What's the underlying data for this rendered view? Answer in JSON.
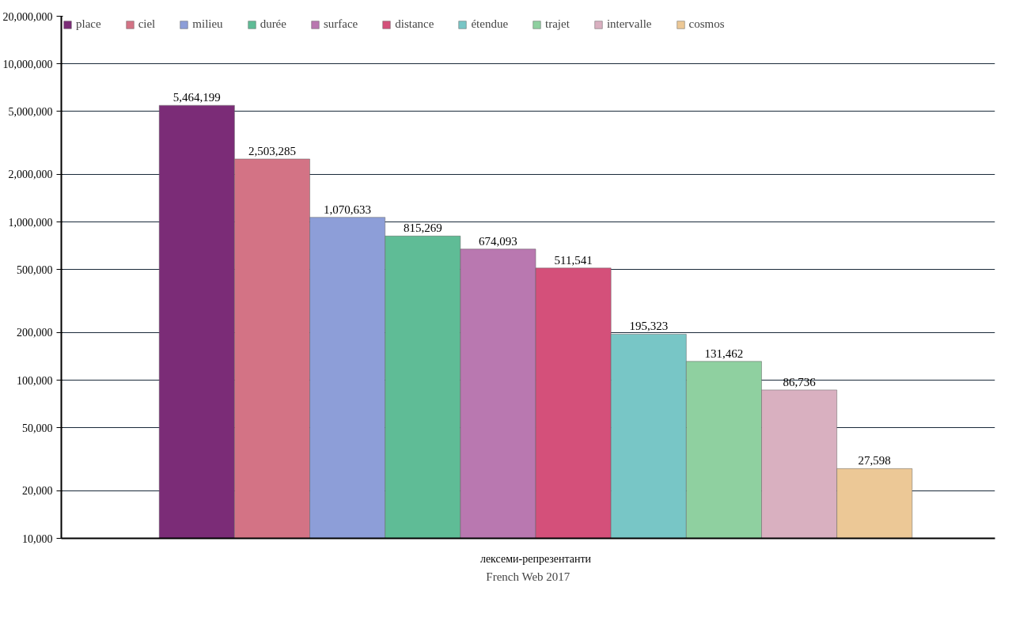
{
  "chart_data": {
    "type": "bar",
    "log": "y",
    "grid": "y",
    "legend": "top",
    "categories": [
      "лексеми-репрезентанти"
    ],
    "series": [
      {
        "name": "place",
        "color": "#7b2c77",
        "values": [
          5464199
        ],
        "value_labels": [
          "5,464,199"
        ]
      },
      {
        "name": "ciel",
        "color": "#d37385",
        "values": [
          2503285
        ],
        "value_labels": [
          "2,503,285"
        ]
      },
      {
        "name": "milieu",
        "color": "#8d9ed8",
        "values": [
          1070633
        ],
        "value_labels": [
          "1,070,633"
        ]
      },
      {
        "name": "durée",
        "color": "#5fbc96",
        "values": [
          815269
        ],
        "value_labels": [
          "815,269"
        ]
      },
      {
        "name": "surface",
        "color": "#b978b0",
        "values": [
          674093
        ],
        "value_labels": [
          "674,093"
        ]
      },
      {
        "name": "distance",
        "color": "#d4507a",
        "values": [
          511541
        ],
        "value_labels": [
          "511,541"
        ]
      },
      {
        "name": "étendue",
        "color": "#78c6c6",
        "values": [
          195323
        ],
        "value_labels": [
          "195,323"
        ]
      },
      {
        "name": "trajet",
        "color": "#8fd0a0",
        "values": [
          131462
        ],
        "value_labels": [
          "131,462"
        ]
      },
      {
        "name": "intervalle",
        "color": "#d9b0c0",
        "values": [
          86736
        ],
        "value_labels": [
          "86,736"
        ]
      },
      {
        "name": "cosmos",
        "color": "#ecc896",
        "values": [
          27598
        ],
        "value_labels": [
          "27,598"
        ]
      }
    ],
    "ylim": [
      10000,
      20000000
    ],
    "yticks": [
      {
        "value": 10000,
        "label": "10,000"
      },
      {
        "value": 20000,
        "label": "20,000"
      },
      {
        "value": 50000,
        "label": "50,000"
      },
      {
        "value": 100000,
        "label": "100,000"
      },
      {
        "value": 200000,
        "label": "200,000"
      },
      {
        "value": 500000,
        "label": "500,000"
      },
      {
        "value": 1000000,
        "label": "1,000,000"
      },
      {
        "value": 2000000,
        "label": "2,000,000"
      },
      {
        "value": 5000000,
        "label": "5,000,000"
      },
      {
        "value": 10000000,
        "label": "10,000,000"
      },
      {
        "value": 20000000,
        "label": "20,000,000"
      }
    ],
    "annotations": [
      "French Web 2017"
    ]
  }
}
